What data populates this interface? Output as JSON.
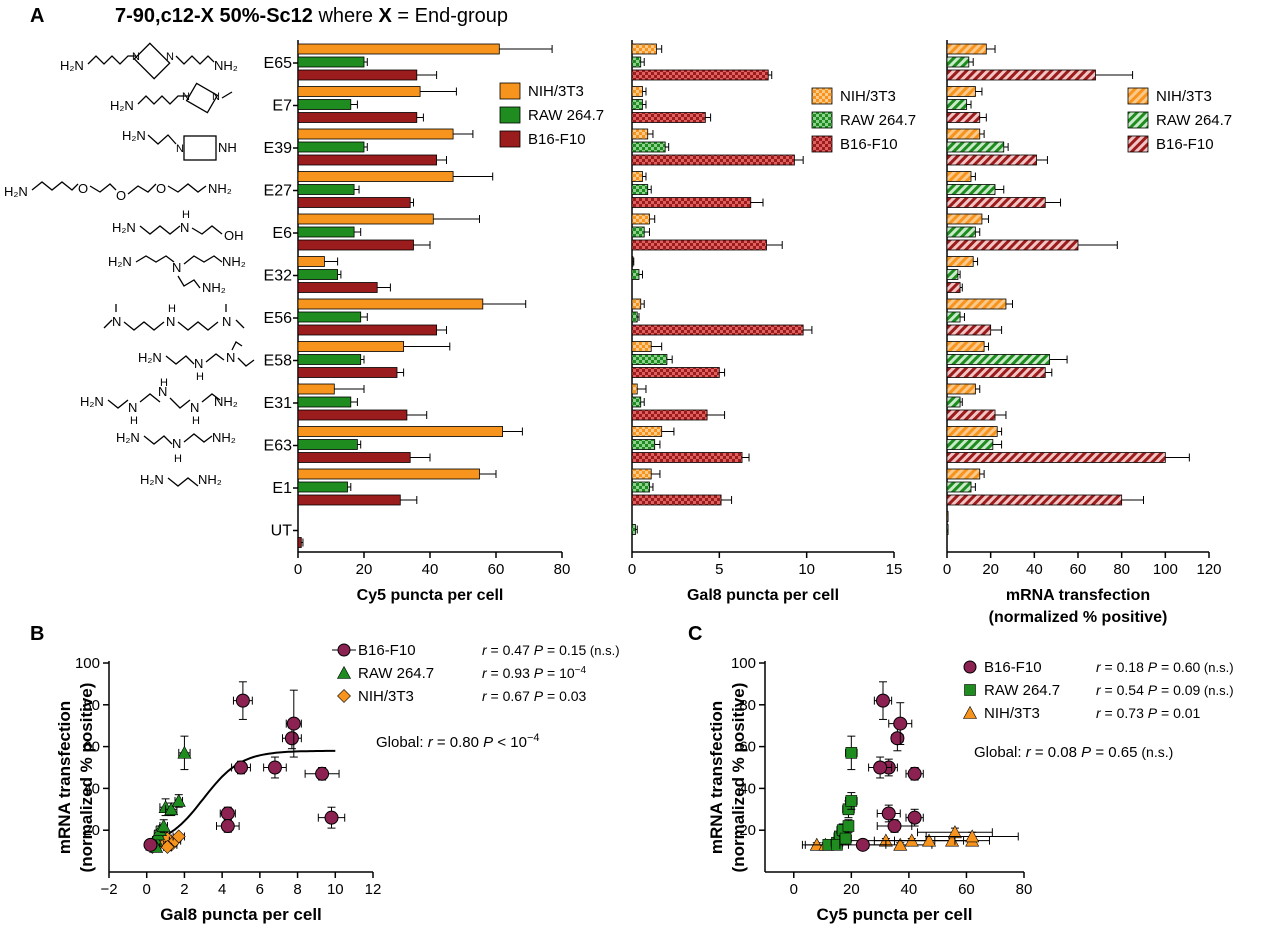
{
  "panel_labels": {
    "A": "A",
    "B": "B",
    "C": "C"
  },
  "title": {
    "bold": "7-90,c12-X 50%-Sc12",
    "plain_pre": " where ",
    "bold_x": "X",
    "plain_post": " = End-group"
  },
  "colors": {
    "nih": "#f7941d",
    "raw": "#1e8c1e",
    "b16": "#9b1c1c",
    "b16_marker": "#8b2252",
    "raw_marker": "#1e8c1e",
    "nih_marker": "#f7941d",
    "axis": "#000000"
  },
  "chart_data": [
    {
      "type": "bar",
      "orientation": "horizontal",
      "panel": "A1",
      "categories": [
        "E65",
        "E7",
        "E39",
        "E27",
        "E6",
        "E32",
        "E56",
        "E58",
        "E31",
        "E63",
        "E1",
        "UT"
      ],
      "series": [
        {
          "name": "NIH/3T3",
          "values": [
            61,
            37,
            47,
            47,
            41,
            8,
            56,
            32,
            11,
            62,
            55,
            0
          ],
          "errors": [
            16,
            11,
            6,
            12,
            14,
            4,
            13,
            14,
            9,
            6,
            5,
            0
          ]
        },
        {
          "name": "RAW 264.7",
          "values": [
            20,
            16,
            20,
            17,
            17,
            12,
            19,
            19,
            16,
            18,
            15,
            0
          ],
          "errors": [
            1,
            2,
            1,
            1.5,
            2,
            1,
            2,
            1,
            2,
            1,
            1,
            0
          ]
        },
        {
          "name": "B16-F10",
          "values": [
            36,
            36,
            42,
            34,
            35,
            24,
            42,
            30,
            33,
            34,
            31,
            1
          ],
          "errors": [
            6,
            2,
            3,
            1,
            5,
            4,
            3,
            2,
            6,
            6,
            5,
            0.5
          ]
        }
      ],
      "xlabel": "Cy5 puncta per cell",
      "xlim": [
        0,
        80
      ],
      "xticks": [
        0,
        20,
        40,
        60,
        80
      ],
      "legend": [
        "NIH/3T3",
        "RAW 264.7",
        "B16-F10"
      ],
      "pattern": "solid"
    },
    {
      "type": "bar",
      "orientation": "horizontal",
      "panel": "A2",
      "categories": [
        "E65",
        "E7",
        "E39",
        "E27",
        "E6",
        "E32",
        "E56",
        "E58",
        "E31",
        "E63",
        "E1",
        "UT"
      ],
      "series": [
        {
          "name": "NIH/3T3",
          "values": [
            1.4,
            0.6,
            0.9,
            0.6,
            1.0,
            0.05,
            0.5,
            1.1,
            0.3,
            1.7,
            1.1,
            0
          ],
          "errors": [
            0.3,
            0.2,
            0.3,
            0.2,
            0.3,
            0.05,
            0.2,
            0.6,
            0.5,
            0.7,
            0.5,
            0
          ]
        },
        {
          "name": "RAW 264.7",
          "values": [
            0.5,
            0.6,
            1.9,
            0.9,
            0.7,
            0.4,
            0.3,
            2.0,
            0.5,
            1.3,
            1.0,
            0.2
          ],
          "errors": [
            0.2,
            0.2,
            0.2,
            0.2,
            0.3,
            0.2,
            0.1,
            0.3,
            0.2,
            0.3,
            0.2,
            0.1
          ]
        },
        {
          "name": "B16-F10",
          "values": [
            7.8,
            4.2,
            9.3,
            6.8,
            7.7,
            0,
            9.8,
            5.0,
            4.3,
            6.3,
            5.1,
            0
          ],
          "errors": [
            0.2,
            0.3,
            0.5,
            0.7,
            0.9,
            0,
            0.5,
            0.3,
            1.0,
            0.4,
            0.6,
            0
          ]
        }
      ],
      "xlabel": "Gal8 puncta per cell",
      "xlim": [
        0,
        15
      ],
      "xticks": [
        0,
        5,
        10,
        15
      ],
      "legend": [
        "NIH/3T3",
        "RAW 264.7",
        "B16-F10"
      ],
      "pattern": "checker"
    },
    {
      "type": "bar",
      "orientation": "horizontal",
      "panel": "A3",
      "categories": [
        "E65",
        "E7",
        "E39",
        "E27",
        "E6",
        "E32",
        "E56",
        "E58",
        "E31",
        "E63",
        "E1",
        "UT"
      ],
      "series": [
        {
          "name": "NIH/3T3",
          "values": [
            18,
            13,
            15,
            11,
            16,
            12,
            27,
            17,
            13,
            23,
            15,
            0.5
          ],
          "errors": [
            4,
            3,
            2,
            2,
            3,
            2,
            3,
            2,
            2,
            2,
            2,
            0
          ]
        },
        {
          "name": "RAW 264.7",
          "values": [
            10,
            9,
            26,
            22,
            13,
            5,
            6,
            47,
            6,
            21,
            11,
            0.5
          ],
          "errors": [
            2,
            2,
            2,
            4,
            2,
            1,
            2,
            8,
            1,
            4,
            2,
            0
          ]
        },
        {
          "name": "B16-F10",
          "values": [
            68,
            15,
            41,
            45,
            60,
            6,
            20,
            45,
            22,
            100,
            80,
            0
          ],
          "errors": [
            17,
            3,
            5,
            7,
            18,
            1,
            5,
            3,
            5,
            11,
            10,
            0
          ]
        }
      ],
      "xlabel": "mRNA transfection",
      "xlabel2": "(normalized % positive)",
      "xlim": [
        0,
        120
      ],
      "xticks": [
        0,
        20,
        40,
        60,
        80,
        100,
        120
      ],
      "legend": [
        "NIH/3T3",
        "RAW 264.7",
        "B16-F10"
      ],
      "pattern": "stripe"
    },
    {
      "type": "scatter",
      "panel": "B",
      "xlabel": "Gal8 puncta per cell",
      "ylabel": "mRNA transfection",
      "ylabel2": "(normalized % positive)",
      "xlim": [
        -2,
        12
      ],
      "ylim": [
        0,
        100
      ],
      "xticks": [
        -2,
        0,
        2,
        4,
        6,
        8,
        10,
        12
      ],
      "yticks": [
        20,
        40,
        60,
        80,
        100
      ],
      "series": [
        {
          "name": "B16-F10",
          "r": "r = 0.47",
          "p": "P = 0.15",
          "note": "(n.s.)",
          "points": [
            [
              0.2,
              13,
              0,
              0
            ],
            [
              4.3,
              28,
              0.4,
              3
            ],
            [
              4.3,
              22,
              0.6,
              3
            ],
            [
              5.1,
              82,
              0.5,
              9
            ],
            [
              5.0,
              50,
              0.5,
              3
            ],
            [
              6.8,
              50,
              0.6,
              5
            ],
            [
              7.7,
              64,
              0.5,
              5
            ],
            [
              7.8,
              71,
              0.4,
              16
            ],
            [
              9.3,
              47,
              0.9,
              3
            ],
            [
              9.8,
              26,
              0.7,
              5
            ]
          ]
        },
        {
          "name": "RAW 264.7",
          "r": "r = 0.93",
          "p": "P = 10",
          "p_exp": "−4",
          "points": [
            [
              0.3,
              13,
              0.2,
              1
            ],
            [
              0.5,
              15,
              0.2,
              2
            ],
            [
              0.6,
              18,
              0.2,
              2
            ],
            [
              0.7,
              20,
              0.2,
              2
            ],
            [
              0.9,
              22,
              0.2,
              3
            ],
            [
              1.0,
              31,
              0.3,
              4
            ],
            [
              1.3,
              30,
              0.3,
              3
            ],
            [
              1.7,
              34,
              0.2,
              3
            ],
            [
              2.0,
              57,
              0.3,
              8
            ],
            [
              0.5,
              12,
              0.2,
              1
            ]
          ]
        },
        {
          "name": "NIH/3T3",
          "r": "r = 0.67",
          "p": "P = 0.03",
          "points": [
            [
              0.3,
              12,
              0.1,
              1
            ],
            [
              0.5,
              14,
              0.1,
              1
            ],
            [
              0.6,
              13,
              0.1,
              1
            ],
            [
              0.9,
              15,
              0.2,
              1
            ],
            [
              1.0,
              14,
              0.2,
              1
            ],
            [
              1.1,
              16,
              0.2,
              1
            ],
            [
              1.3,
              13,
              0.3,
              1
            ],
            [
              1.5,
              15,
              0.3,
              1
            ],
            [
              1.7,
              17,
              0.3,
              1
            ],
            [
              1.1,
              12,
              0.2,
              1
            ]
          ]
        }
      ],
      "fit": {
        "type": "sigmoid",
        "top": 58,
        "bottom": 12,
        "x50": 3.0,
        "slope": 1.0,
        "xrange": [
          0,
          10
        ]
      },
      "global": {
        "label": "Global:",
        "r": "r = 0.80",
        "p": "P < 10",
        "p_exp": "−4"
      }
    },
    {
      "type": "scatter",
      "panel": "C",
      "xlabel": "Cy5 puncta per cell",
      "ylabel": "mRNA transfection",
      "ylabel2": "(normalized % positive)",
      "xlim": [
        -10,
        80
      ],
      "ylim": [
        0,
        100
      ],
      "xticks": [
        0,
        20,
        40,
        60,
        80
      ],
      "yticks": [
        20,
        40,
        60,
        80,
        100
      ],
      "series": [
        {
          "name": "B16-F10",
          "r": "r = 0.18",
          "p": "P = 0.60",
          "note": "(n.s.)",
          "points": [
            [
              24,
              13,
              8,
              0
            ],
            [
              31,
              82,
              3,
              9
            ],
            [
              36,
              64,
              2,
              6
            ],
            [
              37,
              71,
              4,
              10
            ],
            [
              33,
              50,
              3,
              4
            ],
            [
              30,
              50,
              4,
              5
            ],
            [
              42,
              47,
              3,
              3
            ],
            [
              33,
              28,
              4,
              4
            ],
            [
              42,
              26,
              3,
              4
            ],
            [
              35,
              22,
              6,
              3
            ]
          ]
        },
        {
          "name": "RAW 264.7",
          "r": "r = 0.54",
          "p": "P = 0.09",
          "note": "(n.s.)",
          "points": [
            [
              12,
              13,
              1,
              1
            ],
            [
              15,
              14,
              2,
              2
            ],
            [
              16,
              17,
              2,
              2
            ],
            [
              17,
              20,
              2,
              3
            ],
            [
              19,
              22,
              1,
              3
            ],
            [
              19,
              30,
              2,
              4
            ],
            [
              20,
              34,
              2,
              4
            ],
            [
              20,
              57,
              2,
              8
            ],
            [
              15,
              13,
              1,
              1
            ],
            [
              18,
              16,
              2,
              2
            ]
          ]
        },
        {
          "name": "NIH/3T3",
          "r": "r = 0.73",
          "p": "P = 0.01",
          "points": [
            [
              8,
              13,
              4,
              1
            ],
            [
              11,
              13,
              8,
              1
            ],
            [
              32,
              15,
              14,
              1
            ],
            [
              37,
              13,
              11,
              1
            ],
            [
              41,
              15,
              13,
              1
            ],
            [
              47,
              15,
              12,
              2
            ],
            [
              55,
              15,
              6,
              2
            ],
            [
              56,
              19,
              13,
              2
            ],
            [
              62,
              15,
              6,
              1
            ],
            [
              62,
              17,
              16,
              2
            ]
          ]
        }
      ],
      "global": {
        "label": "Global:",
        "r": "r = 0.08",
        "p": "P = 0.65",
        "note": "(n.s.)"
      }
    }
  ]
}
